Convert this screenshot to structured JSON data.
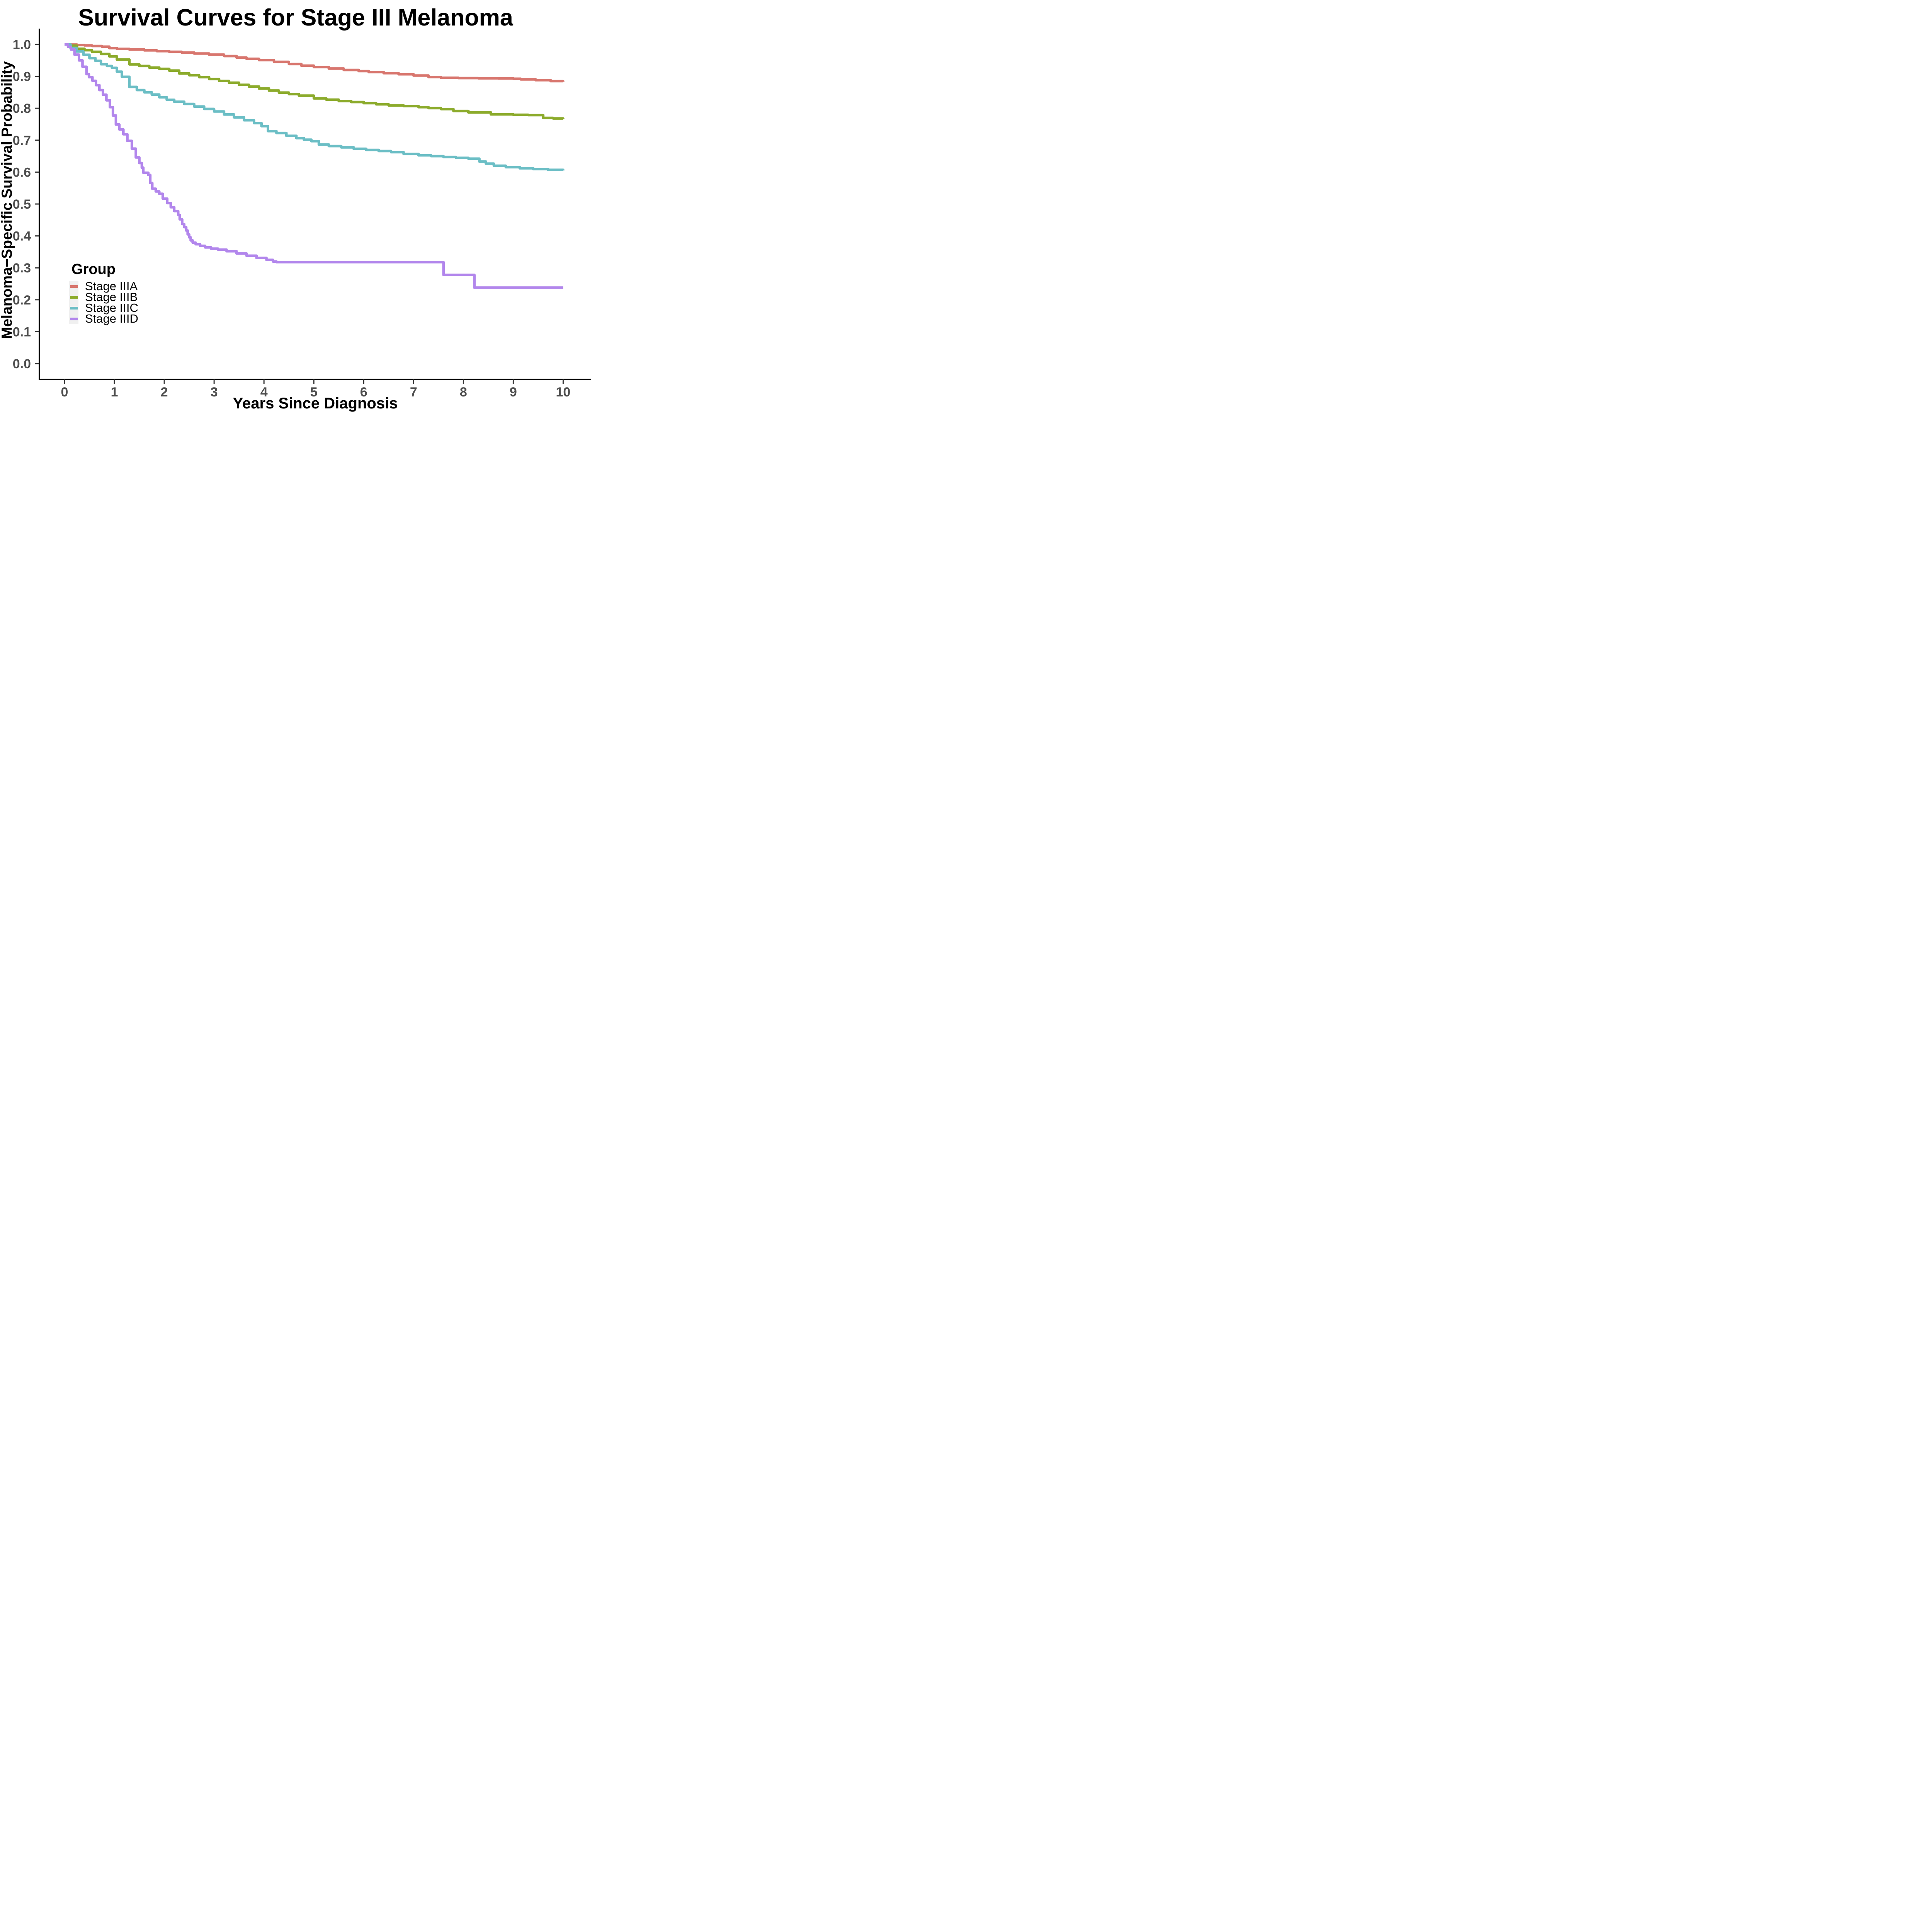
{
  "title": "Survival Curves for Stage III Melanoma",
  "x_axis": {
    "label": "Years Since Diagnosis",
    "ticks": [
      "0",
      "1",
      "2",
      "3",
      "4",
      "5",
      "6",
      "7",
      "8",
      "9",
      "10"
    ]
  },
  "y_axis": {
    "label": "Melanoma−Specific Survival Probability",
    "ticks": [
      "0.0",
      "0.1",
      "0.2",
      "0.3",
      "0.4",
      "0.5",
      "0.6",
      "0.7",
      "0.8",
      "0.9",
      "1.0"
    ]
  },
  "legend": {
    "title": "Group",
    "items": [
      {
        "label": "Stage IIIA",
        "color": "#D8766E"
      },
      {
        "label": "Stage IIIB",
        "color": "#8CAB2C"
      },
      {
        "label": "Stage IIIC",
        "color": "#6BBEC5"
      },
      {
        "label": "Stage IIID",
        "color": "#B286EC"
      }
    ],
    "key_background": "#F0F0F0"
  },
  "colors": {
    "axis_line": "#000000",
    "tick_mark": "#333333",
    "tick_label": "#4D4D4D",
    "background": "#FFFFFF"
  },
  "chart_data": {
    "type": "line",
    "subtype": "kaplan-meier-step",
    "title": "Survival Curves for Stage III Melanoma",
    "xlabel": "Years Since Diagnosis",
    "ylabel": "Melanoma−Specific Survival Probability",
    "xlim": [
      -0.5,
      10.56
    ],
    "ylim": [
      -0.05,
      1.05
    ],
    "x_ticks": [
      0,
      1,
      2,
      3,
      4,
      5,
      6,
      7,
      8,
      9,
      10
    ],
    "y_ticks": [
      0.0,
      0.1,
      0.2,
      0.3,
      0.4,
      0.5,
      0.6,
      0.7,
      0.8,
      0.9,
      1.0
    ],
    "grid": false,
    "legend_position": "inside-left-bottom",
    "series": [
      {
        "name": "Stage IIIA",
        "color": "#D8766E",
        "points": [
          [
            0,
            1.0
          ],
          [
            0.1,
            0.9995
          ],
          [
            0.25,
            0.998
          ],
          [
            0.4,
            0.997
          ],
          [
            0.55,
            0.995
          ],
          [
            0.75,
            0.993
          ],
          [
            0.9,
            0.9885
          ],
          [
            1.05,
            0.986
          ],
          [
            1.3,
            0.984
          ],
          [
            1.6,
            0.9815
          ],
          [
            1.85,
            0.979
          ],
          [
            2.1,
            0.977
          ],
          [
            2.35,
            0.9745
          ],
          [
            2.6,
            0.9715
          ],
          [
            2.9,
            0.968
          ],
          [
            3.2,
            0.9635
          ],
          [
            3.45,
            0.959
          ],
          [
            3.65,
            0.955
          ],
          [
            3.9,
            0.951
          ],
          [
            4.2,
            0.9455
          ],
          [
            4.5,
            0.9385
          ],
          [
            4.75,
            0.9335
          ],
          [
            5.0,
            0.929
          ],
          [
            5.3,
            0.9245
          ],
          [
            5.6,
            0.92
          ],
          [
            5.9,
            0.9165
          ],
          [
            6.1,
            0.9135
          ],
          [
            6.4,
            0.91
          ],
          [
            6.7,
            0.9065
          ],
          [
            7.0,
            0.9025
          ],
          [
            7.3,
            0.898
          ],
          [
            7.55,
            0.8955
          ],
          [
            7.9,
            0.8945
          ],
          [
            8.3,
            0.894
          ],
          [
            8.7,
            0.8935
          ],
          [
            9.0,
            0.8925
          ],
          [
            9.15,
            0.8905
          ],
          [
            9.45,
            0.888
          ],
          [
            9.75,
            0.885
          ],
          [
            10.0,
            0.883
          ]
        ]
      },
      {
        "name": "Stage IIIB",
        "color": "#8CAB2C",
        "points": [
          [
            0,
            1.0
          ],
          [
            0.1,
            0.996
          ],
          [
            0.25,
            0.9865
          ],
          [
            0.4,
            0.982
          ],
          [
            0.55,
            0.977
          ],
          [
            0.73,
            0.97
          ],
          [
            0.9,
            0.9625
          ],
          [
            1.05,
            0.9525
          ],
          [
            1.3,
            0.9375
          ],
          [
            1.5,
            0.9325
          ],
          [
            1.7,
            0.9275
          ],
          [
            1.9,
            0.9235
          ],
          [
            2.1,
            0.918
          ],
          [
            2.3,
            0.909
          ],
          [
            2.5,
            0.9035
          ],
          [
            2.7,
            0.8975
          ],
          [
            2.9,
            0.8915
          ],
          [
            3.1,
            0.8855
          ],
          [
            3.3,
            0.88
          ],
          [
            3.5,
            0.8735
          ],
          [
            3.7,
            0.868
          ],
          [
            3.9,
            0.862
          ],
          [
            4.1,
            0.8555
          ],
          [
            4.3,
            0.849
          ],
          [
            4.5,
            0.8445
          ],
          [
            4.7,
            0.8395
          ],
          [
            5.0,
            0.831
          ],
          [
            5.25,
            0.827
          ],
          [
            5.5,
            0.8225
          ],
          [
            5.75,
            0.8195
          ],
          [
            6.0,
            0.816
          ],
          [
            6.25,
            0.8125
          ],
          [
            6.5,
            0.809
          ],
          [
            6.8,
            0.807
          ],
          [
            7.1,
            0.8035
          ],
          [
            7.3,
            0.8005
          ],
          [
            7.55,
            0.7975
          ],
          [
            7.8,
            0.7915
          ],
          [
            8.1,
            0.787
          ],
          [
            8.55,
            0.781
          ],
          [
            9.0,
            0.7795
          ],
          [
            9.3,
            0.7785
          ],
          [
            9.6,
            0.77
          ],
          [
            9.8,
            0.768
          ],
          [
            10.0,
            0.766
          ]
        ]
      },
      {
        "name": "Stage IIIC",
        "color": "#6BBEC5",
        "points": [
          [
            0,
            1.0
          ],
          [
            0.12,
            0.989
          ],
          [
            0.24,
            0.978
          ],
          [
            0.38,
            0.9675
          ],
          [
            0.5,
            0.957
          ],
          [
            0.62,
            0.9485
          ],
          [
            0.73,
            0.938
          ],
          [
            0.85,
            0.9325
          ],
          [
            0.95,
            0.9265
          ],
          [
            1.05,
            0.9145
          ],
          [
            1.15,
            0.8985
          ],
          [
            1.3,
            0.867
          ],
          [
            1.45,
            0.857
          ],
          [
            1.6,
            0.85
          ],
          [
            1.75,
            0.843
          ],
          [
            1.9,
            0.8345
          ],
          [
            2.05,
            0.8265
          ],
          [
            2.2,
            0.8205
          ],
          [
            2.4,
            0.8135
          ],
          [
            2.6,
            0.8055
          ],
          [
            2.8,
            0.798
          ],
          [
            3.0,
            0.79
          ],
          [
            3.2,
            0.7805
          ],
          [
            3.4,
            0.7715
          ],
          [
            3.6,
            0.7625
          ],
          [
            3.8,
            0.7535
          ],
          [
            3.95,
            0.744
          ],
          [
            4.08,
            0.7285
          ],
          [
            4.25,
            0.7225
          ],
          [
            4.45,
            0.7135
          ],
          [
            4.65,
            0.7065
          ],
          [
            4.8,
            0.7015
          ],
          [
            4.95,
            0.697
          ],
          [
            5.1,
            0.6865
          ],
          [
            5.3,
            0.6815
          ],
          [
            5.55,
            0.6775
          ],
          [
            5.8,
            0.673
          ],
          [
            6.05,
            0.6695
          ],
          [
            6.3,
            0.666
          ],
          [
            6.55,
            0.6625
          ],
          [
            6.8,
            0.657
          ],
          [
            7.1,
            0.6525
          ],
          [
            7.35,
            0.65
          ],
          [
            7.6,
            0.6475
          ],
          [
            7.85,
            0.6445
          ],
          [
            8.1,
            0.642
          ],
          [
            8.32,
            0.633
          ],
          [
            8.45,
            0.6265
          ],
          [
            8.61,
            0.62
          ],
          [
            8.85,
            0.6155
          ],
          [
            9.13,
            0.612
          ],
          [
            9.4,
            0.6095
          ],
          [
            9.7,
            0.607
          ],
          [
            10.0,
            0.605
          ]
        ]
      },
      {
        "name": "Stage IIID",
        "color": "#B286EC",
        "points": [
          [
            0,
            1.0
          ],
          [
            0.07,
            0.9925
          ],
          [
            0.13,
            0.984
          ],
          [
            0.2,
            0.968
          ],
          [
            0.29,
            0.95
          ],
          [
            0.36,
            0.93
          ],
          [
            0.44,
            0.907
          ],
          [
            0.49,
            0.8975
          ],
          [
            0.56,
            0.886
          ],
          [
            0.63,
            0.8725
          ],
          [
            0.7,
            0.857
          ],
          [
            0.77,
            0.8425
          ],
          [
            0.84,
            0.825
          ],
          [
            0.91,
            0.8035
          ],
          [
            0.97,
            0.7775
          ],
          [
            1.03,
            0.749
          ],
          [
            1.1,
            0.7335
          ],
          [
            1.18,
            0.7185
          ],
          [
            1.26,
            0.698
          ],
          [
            1.35,
            0.6735
          ],
          [
            1.43,
            0.646
          ],
          [
            1.5,
            0.6285
          ],
          [
            1.55,
            0.614
          ],
          [
            1.58,
            0.598
          ],
          [
            1.68,
            0.591
          ],
          [
            1.72,
            0.566
          ],
          [
            1.76,
            0.548
          ],
          [
            1.83,
            0.5395
          ],
          [
            1.9,
            0.532
          ],
          [
            1.97,
            0.517
          ],
          [
            2.06,
            0.503
          ],
          [
            2.13,
            0.49
          ],
          [
            2.2,
            0.478
          ],
          [
            2.28,
            0.466
          ],
          [
            2.31,
            0.452
          ],
          [
            2.36,
            0.437
          ],
          [
            2.4,
            0.4275
          ],
          [
            2.44,
            0.417
          ],
          [
            2.47,
            0.405
          ],
          [
            2.5,
            0.3955
          ],
          [
            2.53,
            0.386
          ],
          [
            2.57,
            0.379
          ],
          [
            2.63,
            0.374
          ],
          [
            2.72,
            0.369
          ],
          [
            2.82,
            0.364
          ],
          [
            2.94,
            0.36
          ],
          [
            3.08,
            0.357
          ],
          [
            3.25,
            0.352
          ],
          [
            3.45,
            0.345
          ],
          [
            3.65,
            0.338
          ],
          [
            3.85,
            0.331
          ],
          [
            4.05,
            0.325
          ],
          [
            4.18,
            0.32
          ],
          [
            4.25,
            0.318
          ],
          [
            7.6,
            0.278
          ],
          [
            8.22,
            0.238
          ],
          [
            10.0,
            0.238
          ]
        ]
      }
    ]
  }
}
